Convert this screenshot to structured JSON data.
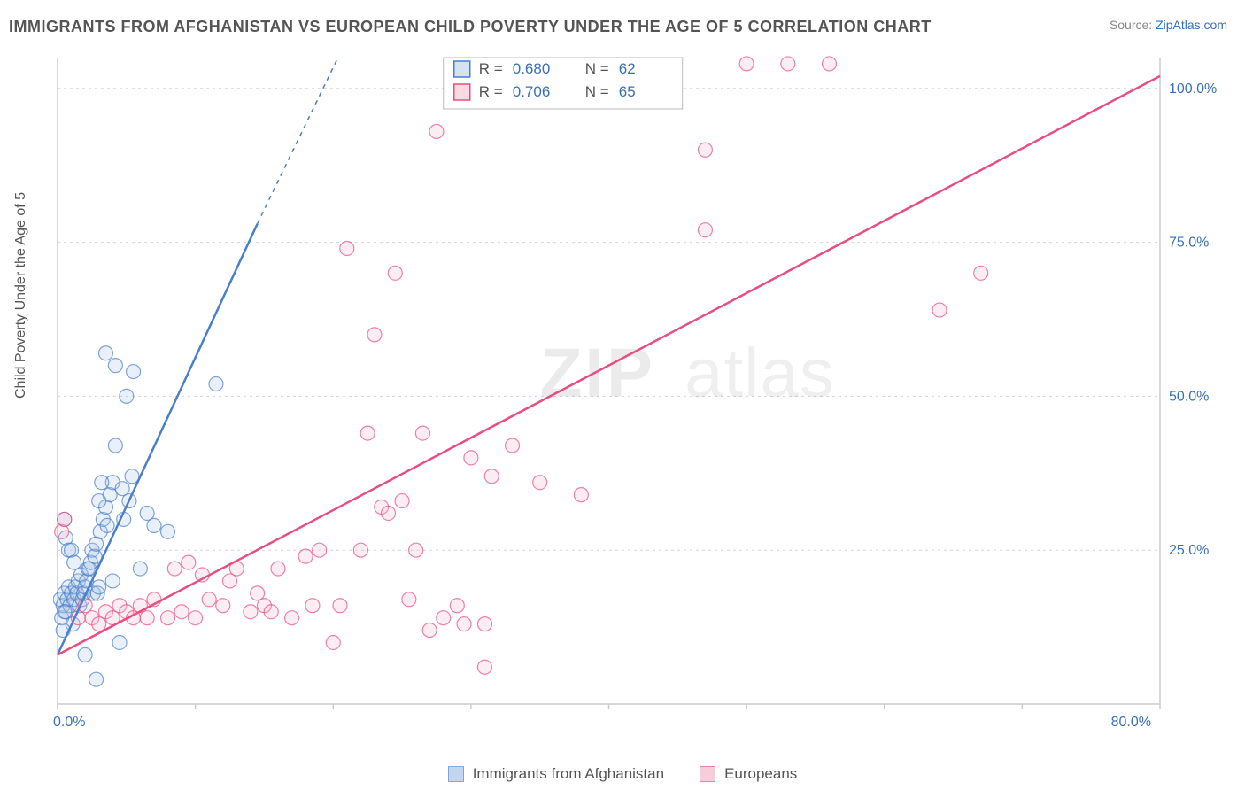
{
  "title": "IMMIGRANTS FROM AFGHANISTAN VS EUROPEAN CHILD POVERTY UNDER THE AGE OF 5 CORRELATION CHART",
  "source_prefix": "Source: ",
  "source_link": "ZipAtlas.com",
  "ylabel": "Child Poverty Under the Age of 5",
  "watermark_zip": "ZIP",
  "watermark_atlas": "atlas",
  "chart": {
    "type": "scatter",
    "xlim": [
      0,
      80
    ],
    "ylim": [
      0,
      105
    ],
    "x_ticks": [
      0,
      10,
      20,
      30,
      40,
      50,
      60,
      70,
      80
    ],
    "x_tick_labels": {
      "0": "0.0%",
      "80": "80.0%"
    },
    "y_gridlines": [
      25,
      50,
      75,
      100
    ],
    "y_tick_labels": {
      "25": "25.0%",
      "50": "50.0%",
      "75": "75.0%",
      "100": "100.0%"
    },
    "background_color": "#ffffff",
    "grid_color": "#d5d5d5",
    "axis_color": "#cccccc",
    "tick_label_color": "#3b6fb6",
    "marker_radius": 8,
    "marker_stroke_width": 1.2,
    "marker_fill_opacity": 0.25,
    "trend_line_width": 2.5,
    "series": [
      {
        "name": "Immigrants from Afghanistan",
        "color": "#4a7fc9",
        "fill": "#a9c5e8",
        "R": "0.680",
        "N": "62",
        "trend": {
          "x1": 0,
          "y1": 8,
          "x2": 14.5,
          "y2": 78,
          "dash_to_x": 21,
          "dash_to_y": 108
        },
        "points": [
          [
            0.2,
            17
          ],
          [
            0.3,
            14
          ],
          [
            0.4,
            16
          ],
          [
            0.5,
            18
          ],
          [
            0.6,
            15
          ],
          [
            0.7,
            17
          ],
          [
            0.8,
            19
          ],
          [
            0.9,
            16
          ],
          [
            1.0,
            18
          ],
          [
            1.1,
            13
          ],
          [
            1.2,
            17
          ],
          [
            1.3,
            19
          ],
          [
            1.4,
            18
          ],
          [
            1.5,
            20
          ],
          [
            1.6,
            16
          ],
          [
            1.7,
            21
          ],
          [
            1.8,
            17
          ],
          [
            1.9,
            18
          ],
          [
            2.0,
            19
          ],
          [
            2.1,
            20
          ],
          [
            2.2,
            22
          ],
          [
            2.3,
            22
          ],
          [
            2.4,
            23
          ],
          [
            2.5,
            25
          ],
          [
            2.6,
            18
          ],
          [
            2.7,
            24
          ],
          [
            2.8,
            26
          ],
          [
            2.9,
            18
          ],
          [
            3.0,
            19
          ],
          [
            3.1,
            28
          ],
          [
            3.3,
            30
          ],
          [
            3.5,
            32
          ],
          [
            3.6,
            29
          ],
          [
            3.8,
            34
          ],
          [
            4.0,
            36
          ],
          [
            4.0,
            20
          ],
          [
            4.2,
            42
          ],
          [
            4.5,
            10
          ],
          [
            4.7,
            35
          ],
          [
            4.8,
            30
          ],
          [
            5.0,
            50
          ],
          [
            5.2,
            33
          ],
          [
            5.4,
            37
          ],
          [
            5.5,
            54
          ],
          [
            3.5,
            57
          ],
          [
            4.2,
            55
          ],
          [
            6.0,
            22
          ],
          [
            6.5,
            31
          ],
          [
            7.0,
            29
          ],
          [
            8.0,
            28
          ],
          [
            0.5,
            30
          ],
          [
            0.6,
            27
          ],
          [
            0.8,
            25
          ],
          [
            1.0,
            25
          ],
          [
            1.2,
            23
          ],
          [
            0.5,
            15
          ],
          [
            0.4,
            12
          ],
          [
            2.0,
            8
          ],
          [
            2.8,
            4
          ],
          [
            3.0,
            33
          ],
          [
            3.2,
            36
          ],
          [
            11.5,
            52
          ]
        ]
      },
      {
        "name": "Europeans",
        "color": "#e84e7f",
        "fill": "#f5b8ca",
        "R": "0.706",
        "N": "65",
        "trend": {
          "x1": 0,
          "y1": 8,
          "x2": 80,
          "y2": 102
        },
        "points": [
          [
            0.3,
            28
          ],
          [
            0.5,
            30
          ],
          [
            1.5,
            14
          ],
          [
            2.0,
            16
          ],
          [
            2.5,
            14
          ],
          [
            3.0,
            13
          ],
          [
            3.5,
            15
          ],
          [
            4.0,
            14
          ],
          [
            4.5,
            16
          ],
          [
            5.0,
            15
          ],
          [
            5.5,
            14
          ],
          [
            6.0,
            16
          ],
          [
            6.5,
            14
          ],
          [
            7.0,
            17
          ],
          [
            8.0,
            14
          ],
          [
            8.5,
            22
          ],
          [
            9.0,
            15
          ],
          [
            9.5,
            23
          ],
          [
            10.0,
            14
          ],
          [
            10.5,
            21
          ],
          [
            11.0,
            17
          ],
          [
            12.0,
            16
          ],
          [
            12.5,
            20
          ],
          [
            13.0,
            22
          ],
          [
            14.0,
            15
          ],
          [
            14.5,
            18
          ],
          [
            15.0,
            16
          ],
          [
            15.5,
            15
          ],
          [
            16.0,
            22
          ],
          [
            17.0,
            14
          ],
          [
            18.0,
            24
          ],
          [
            18.5,
            16
          ],
          [
            19.0,
            25
          ],
          [
            20.0,
            10
          ],
          [
            20.5,
            16
          ],
          [
            21.0,
            74
          ],
          [
            22.0,
            25
          ],
          [
            22.5,
            44
          ],
          [
            23.0,
            60
          ],
          [
            23.5,
            32
          ],
          [
            24.0,
            31
          ],
          [
            24.5,
            70
          ],
          [
            25.0,
            33
          ],
          [
            25.5,
            17
          ],
          [
            26.0,
            25
          ],
          [
            26.5,
            44
          ],
          [
            27.0,
            12
          ],
          [
            27.5,
            93
          ],
          [
            28.0,
            14
          ],
          [
            29.0,
            16
          ],
          [
            29.5,
            13
          ],
          [
            30.0,
            40
          ],
          [
            31.0,
            13
          ],
          [
            31.5,
            37
          ],
          [
            31.0,
            6
          ],
          [
            33.0,
            42
          ],
          [
            35.0,
            36
          ],
          [
            38.0,
            34
          ],
          [
            47.0,
            90
          ],
          [
            50.0,
            104
          ],
          [
            53.0,
            104
          ],
          [
            56.0,
            104
          ],
          [
            64.0,
            64
          ],
          [
            67.0,
            70
          ],
          [
            47.0,
            77
          ]
        ]
      }
    ]
  },
  "legend_box": {
    "R_label": "R =",
    "N_label": "N ="
  },
  "bottom_legend": [
    "Immigrants from Afghanistan",
    "Europeans"
  ]
}
